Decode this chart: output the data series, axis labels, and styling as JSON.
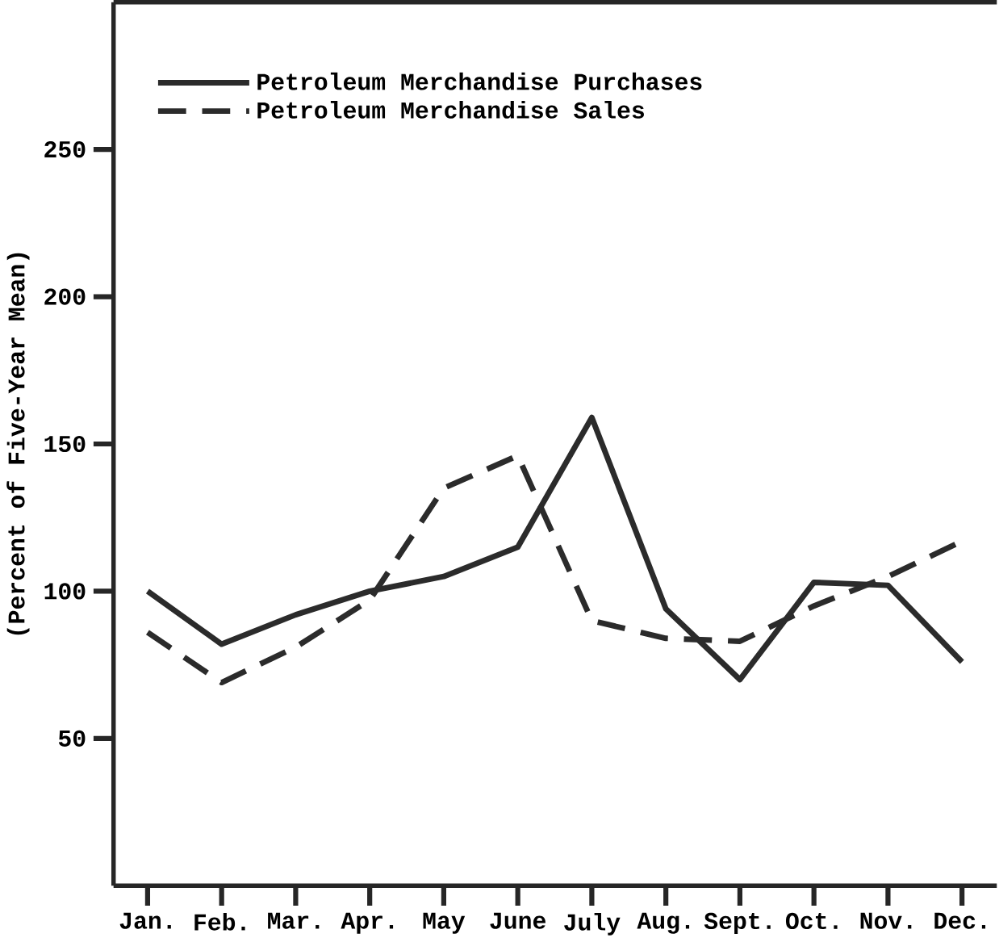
{
  "chart_data": {
    "type": "line",
    "ylabel": "(Percent of Five-Year Mean)",
    "categories": [
      "Jan.",
      "Feb.",
      "Mar.",
      "Apr.",
      "May",
      "June",
      "July",
      "Aug.",
      "Sept.",
      "Oct.",
      "Nov.",
      "Dec."
    ],
    "series": [
      {
        "name": "Petroleum Merchandise Purchases",
        "color": "#2b2b2b",
        "line_style": "solid",
        "values": [
          100,
          82,
          92,
          100,
          105,
          115,
          159,
          94,
          70,
          103,
          102,
          76
        ]
      },
      {
        "name": "Petroleum Merchandise Sales",
        "color": "#2b2b2b",
        "line_style": "dashed",
        "values": [
          86,
          69,
          81,
          97,
          135,
          146,
          90,
          84,
          83,
          95,
          105,
          117
        ]
      }
    ],
    "ylim": [
      0,
      300
    ],
    "yticks": [
      50,
      100,
      150,
      200,
      250
    ],
    "grid": false,
    "legend": "top left",
    "marker": "none"
  }
}
